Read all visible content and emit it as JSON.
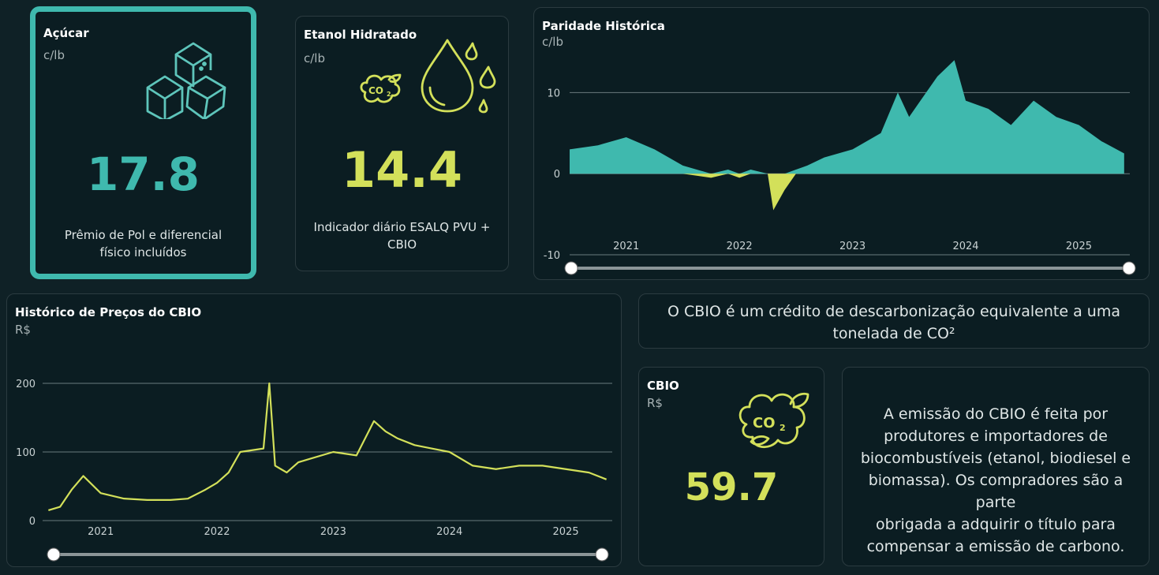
{
  "sugar": {
    "title": "Açúcar",
    "unit": "c/lb",
    "value": "17.8",
    "desc_line1": "Prêmio de Pol e diferencial",
    "desc_line2": "físico incluídos",
    "icon": "sugar-cubes-icon"
  },
  "ethanol": {
    "title": "Etanol Hidratado",
    "unit": "c/lb",
    "value": "14.4",
    "desc_line1": "Indicador diário ESALQ PVU +",
    "desc_line2": "CBIO",
    "icon": "ethanol-drop-icon"
  },
  "parity": {
    "title": "Paridade Histórica",
    "unit": "c/lb"
  },
  "cbio_history": {
    "title": "Histórico de Preços do CBIO",
    "unit": "R$"
  },
  "cbio_info": {
    "line1": "O CBIO é um crédito de descarbonização equivalente a uma",
    "line2": "tonelada de CO²"
  },
  "cbio_card": {
    "title": "CBIO",
    "unit": "R$",
    "value": "59.7",
    "icon": "co2-cloud-icon"
  },
  "emission_text": [
    "A emissão do CBIO é feita por",
    "produtores e importadores de",
    "biocombustíveis (etanol, biodiesel e",
    "biomassa). Os compradores são a parte",
    "obrigada a adquirir o título para",
    "compensar a emissão de carbono."
  ],
  "colors": {
    "teal": "#3fb9ae",
    "lime": "#d3e05a",
    "background": "#0f2126",
    "card": "#0b1d22"
  },
  "chart_data": [
    {
      "type": "area",
      "title": "Paridade Histórica",
      "ylabel": "c/lb",
      "x_ticks": [
        "2021",
        "2022",
        "2023",
        "2024",
        "2025"
      ],
      "y_ticks": [
        10,
        0,
        -10
      ],
      "ylim": [
        -10,
        15
      ],
      "grid": true,
      "x": [
        2020.5,
        2020.75,
        2021.0,
        2021.25,
        2021.5,
        2021.75,
        2021.9,
        2022.0,
        2022.1,
        2022.25,
        2022.3,
        2022.4,
        2022.5,
        2022.6,
        2022.75,
        2023.0,
        2023.25,
        2023.4,
        2023.5,
        2023.6,
        2023.75,
        2023.9,
        2024.0,
        2024.2,
        2024.4,
        2024.6,
        2024.8,
        2025.0,
        2025.2,
        2025.4
      ],
      "y": [
        3,
        3.5,
        4.5,
        3,
        1,
        -0.5,
        0.5,
        -0.5,
        0.5,
        0,
        -4.5,
        -2,
        0.5,
        1,
        2,
        3,
        5,
        10,
        7,
        9,
        12,
        14,
        9,
        8,
        6,
        9,
        7,
        6,
        4,
        2.5
      ],
      "series_colors": {
        "positive": "#3fb9ae",
        "negative": "#d3e05a"
      }
    },
    {
      "type": "line",
      "title": "Histórico de Preços do CBIO",
      "ylabel": "R$",
      "x_ticks": [
        "2021",
        "2022",
        "2023",
        "2024",
        "2025"
      ],
      "y_ticks": [
        200,
        100,
        0
      ],
      "ylim": [
        0,
        200
      ],
      "grid": true,
      "x": [
        2020.55,
        2020.65,
        2020.75,
        2020.85,
        2021.0,
        2021.2,
        2021.4,
        2021.6,
        2021.75,
        2021.9,
        2022.0,
        2022.1,
        2022.2,
        2022.4,
        2022.45,
        2022.5,
        2022.55,
        2022.6,
        2022.7,
        2022.8,
        2023.0,
        2023.2,
        2023.35,
        2023.45,
        2023.55,
        2023.7,
        2023.85,
        2024.0,
        2024.2,
        2024.4,
        2024.6,
        2024.8,
        2025.0,
        2025.2,
        2025.35
      ],
      "y": [
        15,
        20,
        45,
        65,
        40,
        32,
        30,
        30,
        32,
        45,
        55,
        70,
        100,
        105,
        200,
        80,
        75,
        70,
        85,
        90,
        100,
        95,
        145,
        130,
        120,
        110,
        105,
        100,
        80,
        75,
        80,
        80,
        75,
        70,
        60
      ],
      "color": "#d3e05a"
    }
  ]
}
